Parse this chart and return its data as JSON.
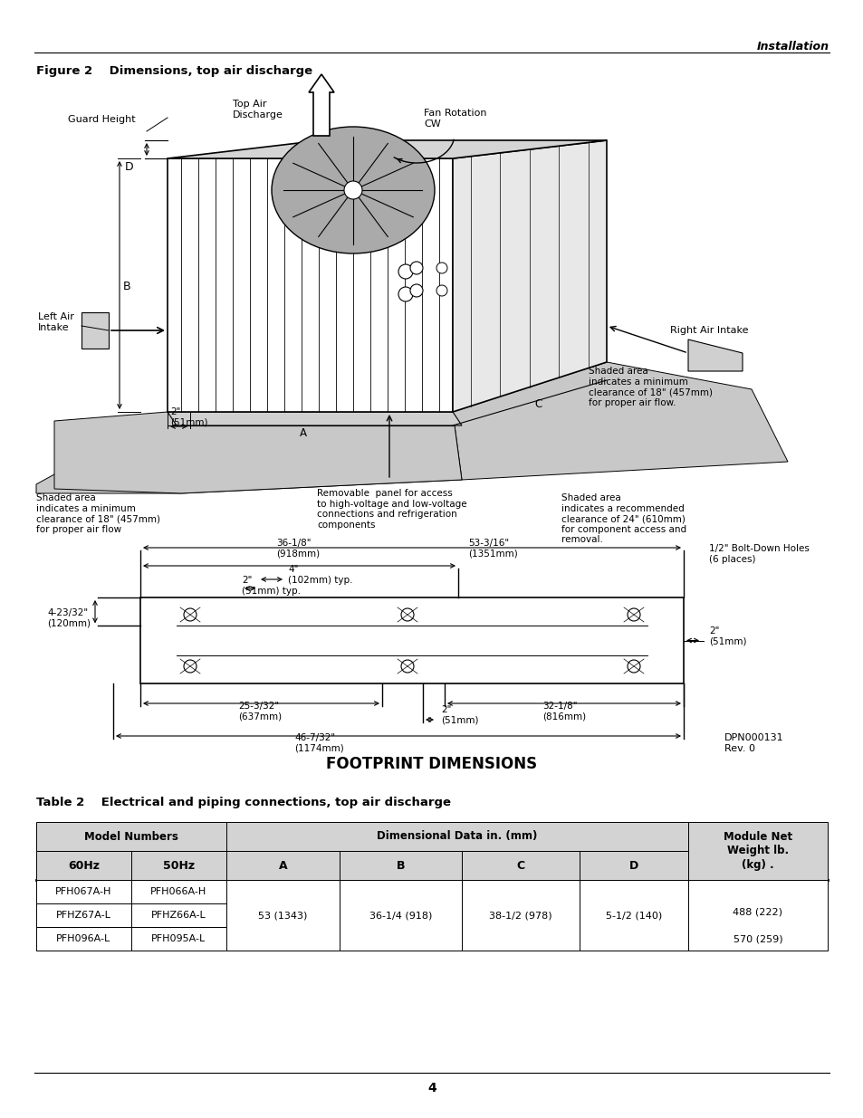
{
  "page_header": "Installation",
  "figure_title": "Figure 2    Dimensions, top air discharge",
  "table_title": "Table 2    Electrical and piping connections, top air discharge",
  "footprint_label": "FOOTPRINT DIMENSIONS",
  "dpn_label": "DPN000131\nRev. 0",
  "page_number": "4",
  "bg_color": "#ffffff",
  "text_color": "#000000",
  "gray_shade": "#c8c8c8",
  "gray_face": "#e0e0e0",
  "gray_top": "#d0d0d0",
  "table_header_bg": "#d3d3d3",
  "models_60": [
    "PFH067A-H",
    "PFHZ67A-L",
    "PFH096A-L"
  ],
  "models_50": [
    "PFH066A-H",
    "PFHZ66A-L",
    "PFH095A-L"
  ],
  "dim_A": "53 (1343)",
  "dim_B": "36-1/4 (918)",
  "dim_C": "38-1/2 (978)",
  "dim_D": "5-1/2 (140)",
  "weight_1": "488 (222)",
  "weight_2": "570 (259)"
}
